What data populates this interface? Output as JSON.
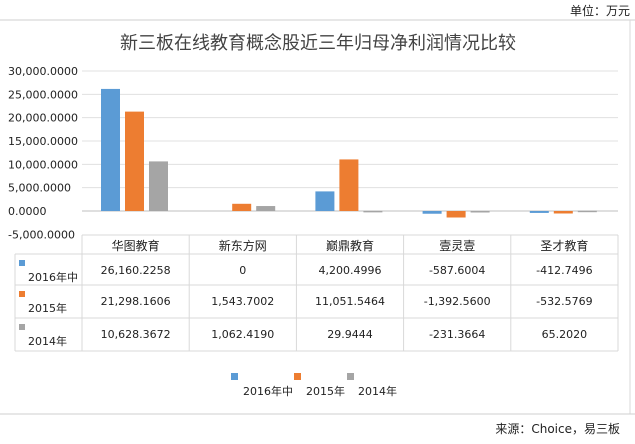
{
  "unit_label": "单位：万元",
  "source_label": "来源：Choice，易三板",
  "chart_data": {
    "type": "bar",
    "title": "新三板在线教育概念股近三年归母净利润情况比较",
    "xlabel": "",
    "ylabel": "",
    "ylim": [
      -5000,
      30000
    ],
    "yticks": [
      "30,000.0000",
      "25,000.0000",
      "20,000.0000",
      "15,000.0000",
      "10,000.0000",
      "5,000.0000",
      "0.0000",
      "-5,000.0000"
    ],
    "ytick_values": [
      30000,
      25000,
      20000,
      15000,
      10000,
      5000,
      0,
      -5000
    ],
    "grid": true,
    "legend": "bottom",
    "categories": [
      "华图教育",
      "新东方网",
      "巅鼎教育",
      "壹灵壹",
      "圣才教育"
    ],
    "series": [
      {
        "name": "2016年中",
        "color": "#5b9bd5",
        "values": [
          26160.2258,
          0,
          4200.4996,
          -587.6004,
          -412.7496
        ],
        "labels": [
          "26,160.2258",
          "0",
          "4,200.4996",
          "-587.6004",
          "-412.7496"
        ]
      },
      {
        "name": "2015年",
        "color": "#ed7d31",
        "values": [
          21298.1606,
          1543.7002,
          11051.5464,
          -1392.56,
          -532.5769
        ],
        "labels": [
          "21,298.1606",
          "1,543.7002",
          "11,051.5464",
          "-1,392.5600",
          "-532.5769"
        ]
      },
      {
        "name": "2014年",
        "color": "#a5a5a5",
        "values": [
          10628.3672,
          1062.419,
          29.9444,
          -231.3664,
          65.202
        ],
        "labels": [
          "10,628.3672",
          "1,062.4190",
          "29.9444",
          "-231.3664",
          "65.2020"
        ]
      }
    ],
    "data_table": true
  }
}
